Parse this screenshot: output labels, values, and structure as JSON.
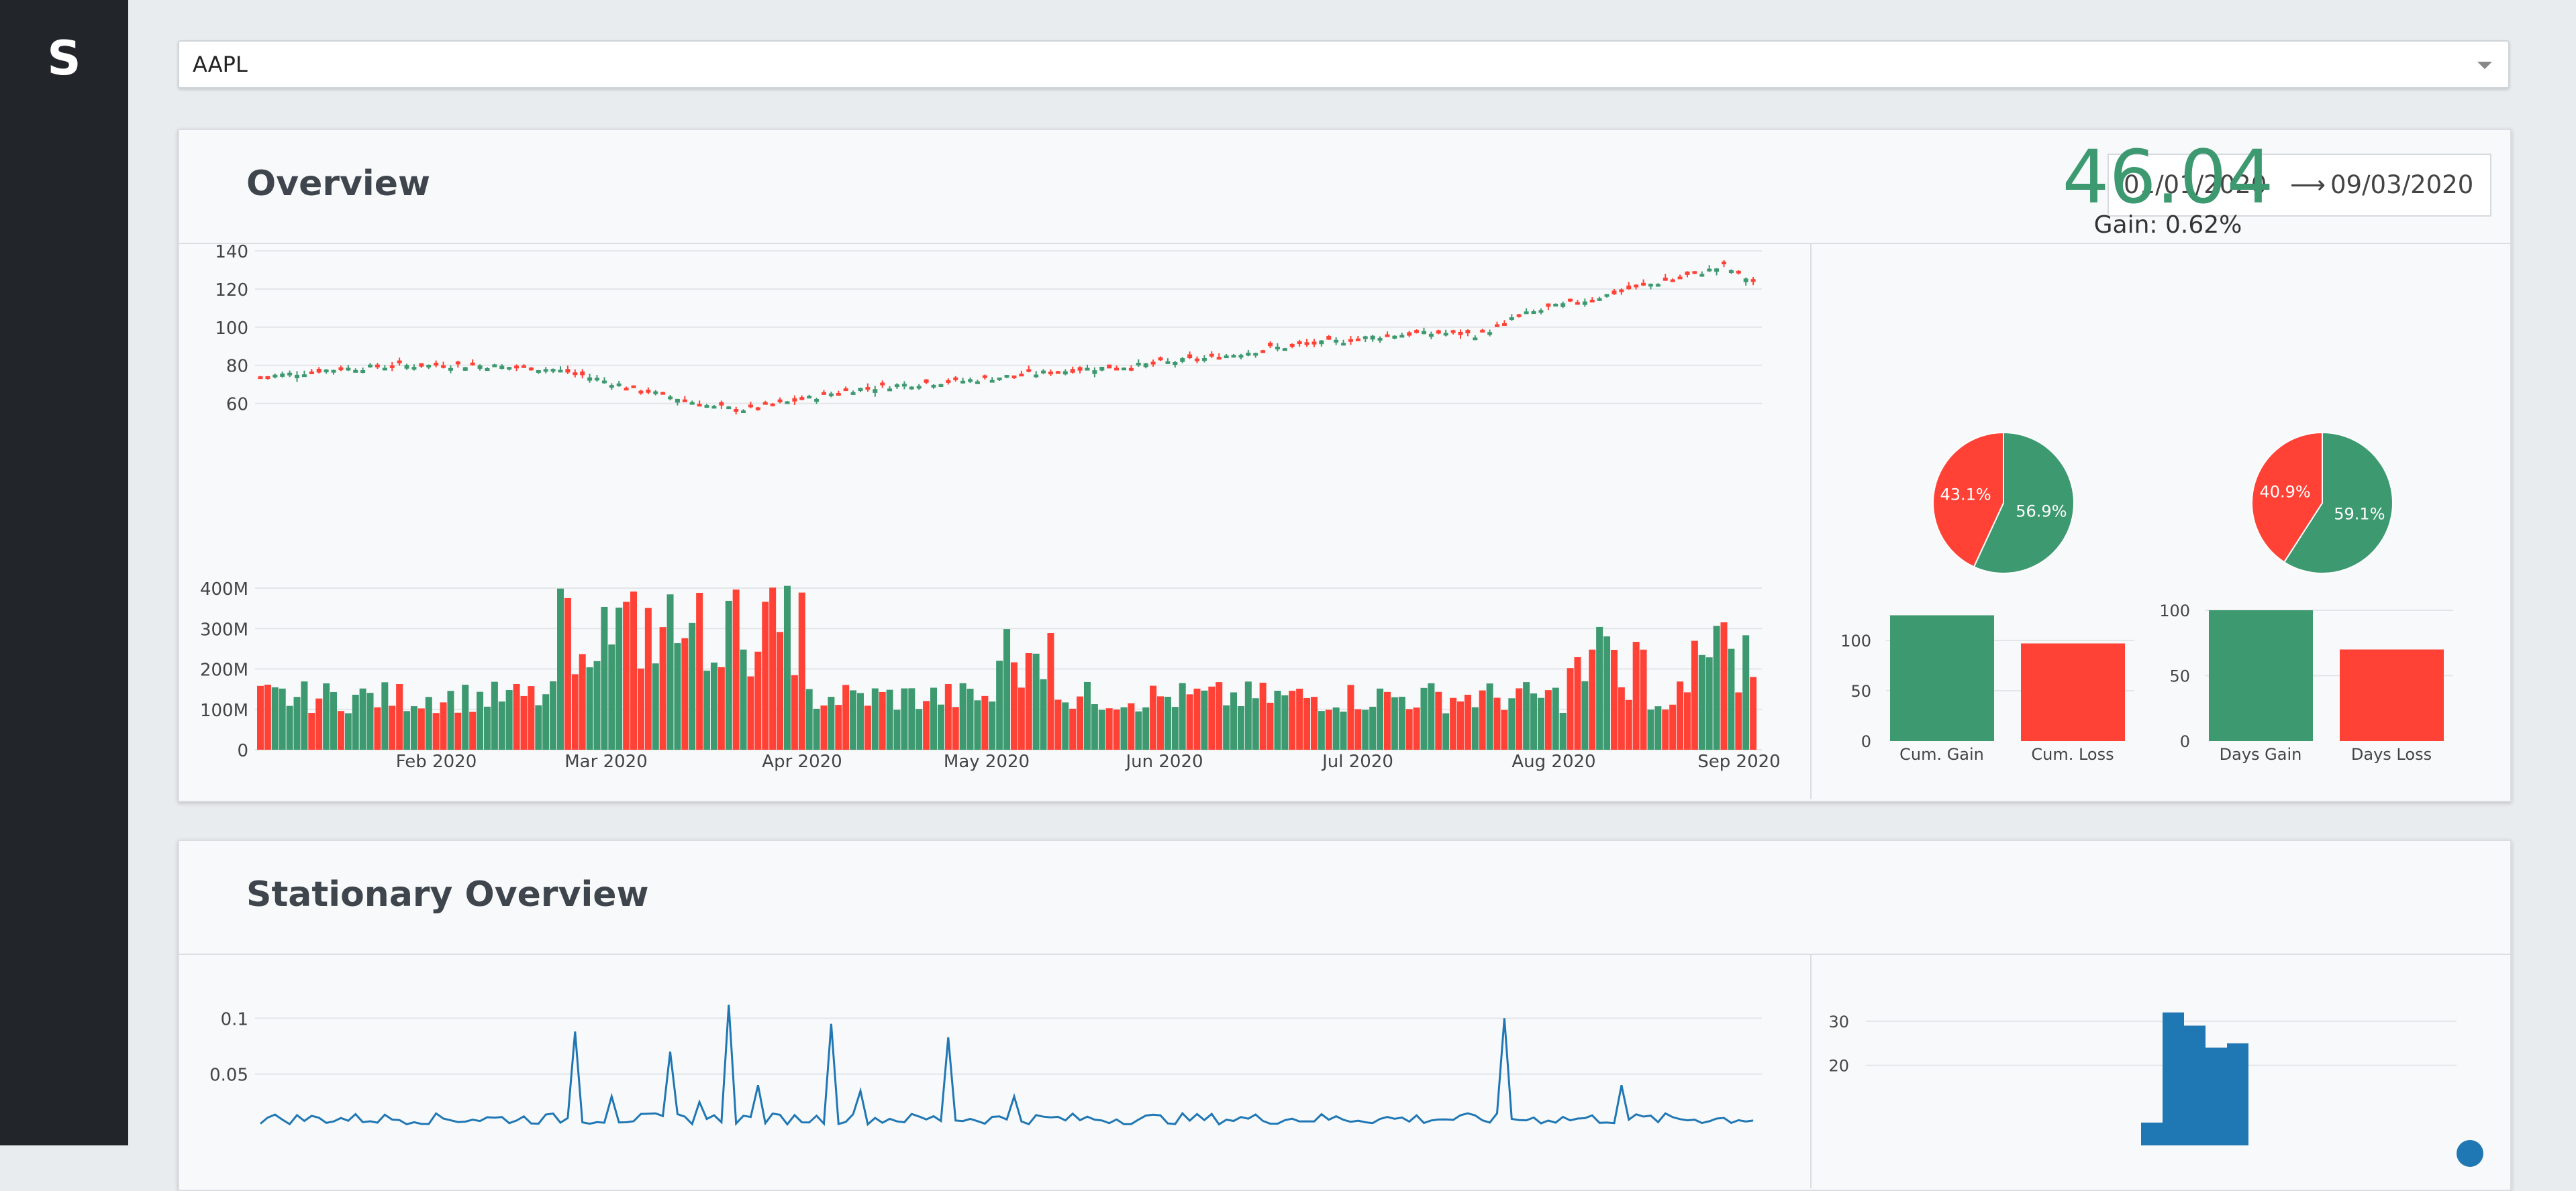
{
  "app": {
    "logo_letter": "S"
  },
  "ticker_select": {
    "value": "AAPL"
  },
  "overview": {
    "title": "Overview",
    "date_start": "01/01/2020",
    "date_arrow": "⟶",
    "date_end": "09/03/2020",
    "kpi_value": "46.04",
    "kpi_gain": "Gain: 0.62%"
  },
  "stationary": {
    "title": "Stationary Overview"
  },
  "colors": {
    "gain": "#3d9970",
    "loss": "#ff4136",
    "series": "#1f77b4"
  },
  "chart_data": [
    {
      "type": "candlestick",
      "y_ticks": [
        "140",
        "120",
        "100",
        "80",
        "60"
      ],
      "ylim": [
        50,
        145
      ],
      "x_ticks": [
        "Feb 2020",
        "Mar 2020",
        "Apr 2020",
        "May 2020",
        "Jun 2020",
        "Jul 2020",
        "Aug 2020",
        "Sep 2020"
      ],
      "x_range": [
        "2020-01-02",
        "2020-09-03"
      ],
      "grid": true
    },
    {
      "type": "bar",
      "y_ticks": [
        "400M",
        "300M",
        "200M",
        "100M",
        "0"
      ],
      "ylim": [
        0,
        420000000
      ],
      "grid": true
    },
    {
      "type": "pie",
      "slices": [
        {
          "label": "56.9%",
          "value": 56.9,
          "color": "#3d9970"
        },
        {
          "label": "43.1%",
          "value": 43.1,
          "color": "#ff4136"
        }
      ]
    },
    {
      "type": "pie",
      "slices": [
        {
          "label": "59.1%",
          "value": 59.1,
          "color": "#3d9970"
        },
        {
          "label": "40.9%",
          "value": 40.9,
          "color": "#ff4136"
        }
      ]
    },
    {
      "type": "bar",
      "categories": [
        "Cum. Gain",
        "Cum. Loss"
      ],
      "values": [
        125,
        97
      ],
      "y_ticks": [
        "100",
        "50",
        "0"
      ],
      "ylim": [
        0,
        130
      ]
    },
    {
      "type": "bar",
      "categories": [
        "Days Gain",
        "Days Loss"
      ],
      "values": [
        100,
        70
      ],
      "y_ticks": [
        "100",
        "50",
        "0"
      ],
      "ylim": [
        0,
        100
      ]
    },
    {
      "type": "line",
      "y_ticks": [
        "0.1",
        "0.05"
      ],
      "ylim": [
        0,
        0.12
      ],
      "grid": true
    },
    {
      "type": "bar",
      "y_ticks": [
        "30",
        "20"
      ],
      "values": [
        7,
        32,
        29,
        24,
        25
      ],
      "ylim": [
        0,
        35
      ],
      "grid": true
    }
  ]
}
